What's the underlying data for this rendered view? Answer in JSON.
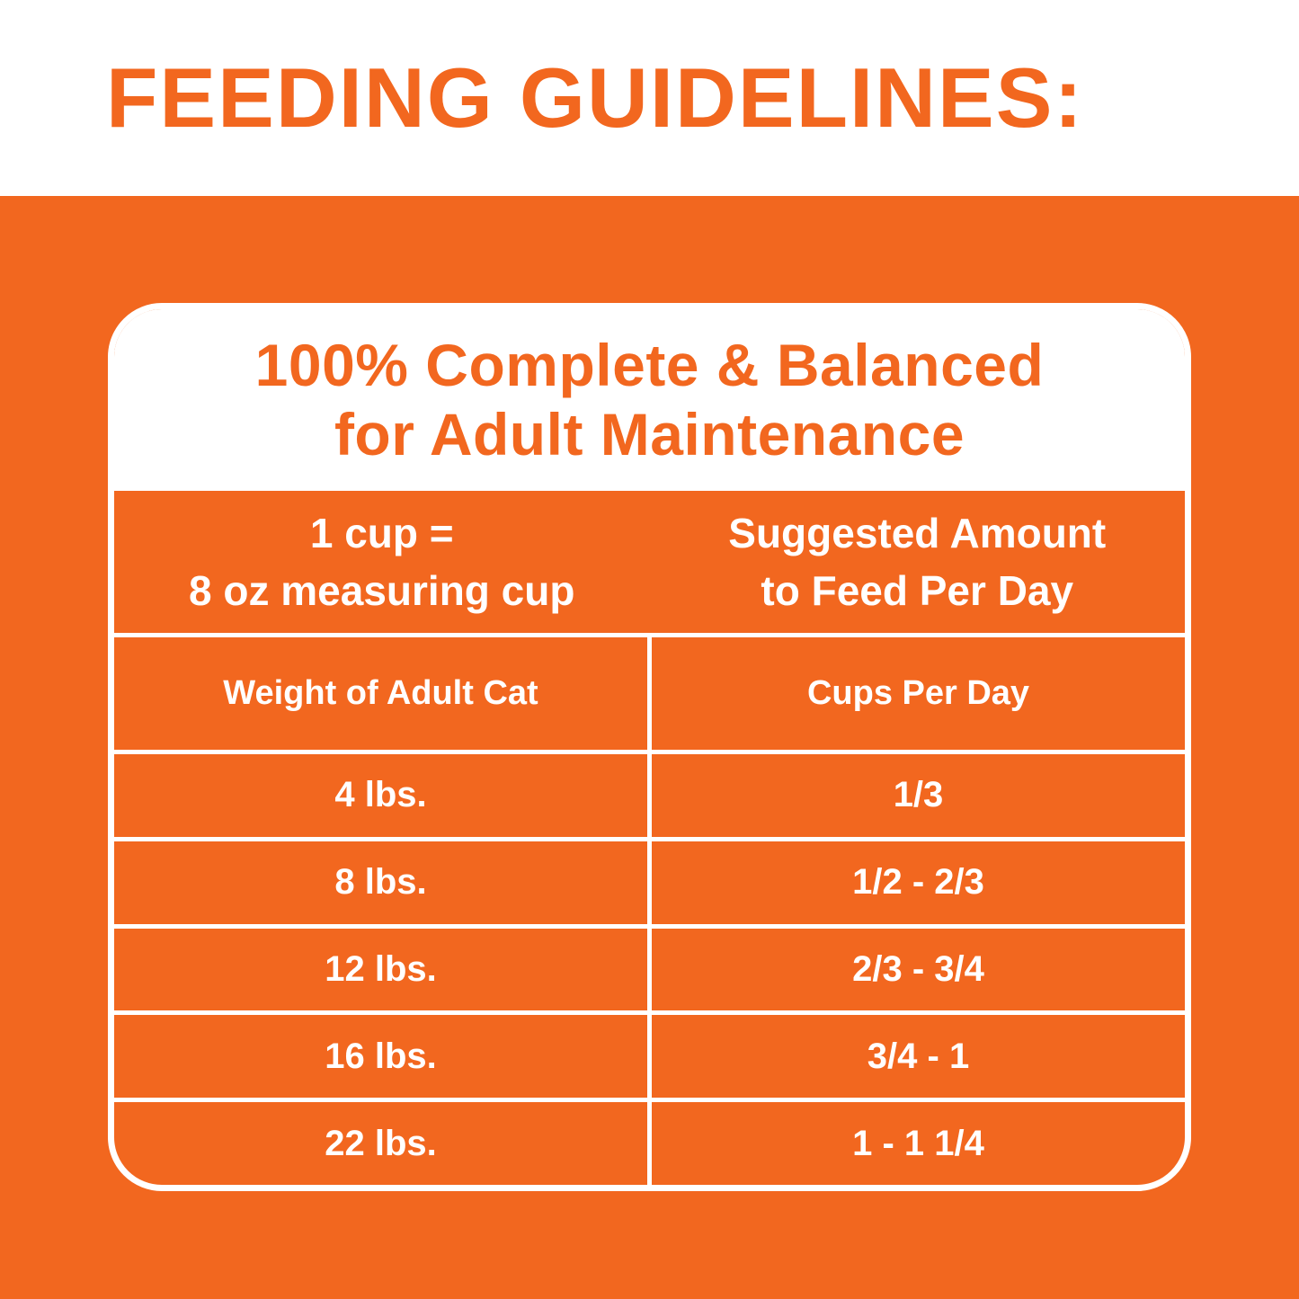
{
  "colors": {
    "orange": "#F2671F",
    "white": "#FFFFFF"
  },
  "header": {
    "title": "FEEDING GUIDELINES:"
  },
  "card": {
    "heading": {
      "line1": "100% Complete & Balanced",
      "line2": "for Adult Maintenance"
    },
    "measure_note": {
      "line1": "1 cup =",
      "line2": "8 oz measuring cup"
    },
    "suggestion_note": {
      "line1": "Suggested Amount",
      "line2": "to Feed Per Day"
    },
    "columns": [
      "Weight of Adult Cat",
      "Cups Per Day"
    ],
    "rows": [
      {
        "weight": "4 lbs.",
        "cups": "1/3"
      },
      {
        "weight": "8 lbs.",
        "cups": "1/2 - 2/3"
      },
      {
        "weight": "12 lbs.",
        "cups": "2/3 - 3/4"
      },
      {
        "weight": "16 lbs.",
        "cups": "3/4 - 1"
      },
      {
        "weight": "22 lbs.",
        "cups": "1 - 1 1/4"
      }
    ]
  }
}
